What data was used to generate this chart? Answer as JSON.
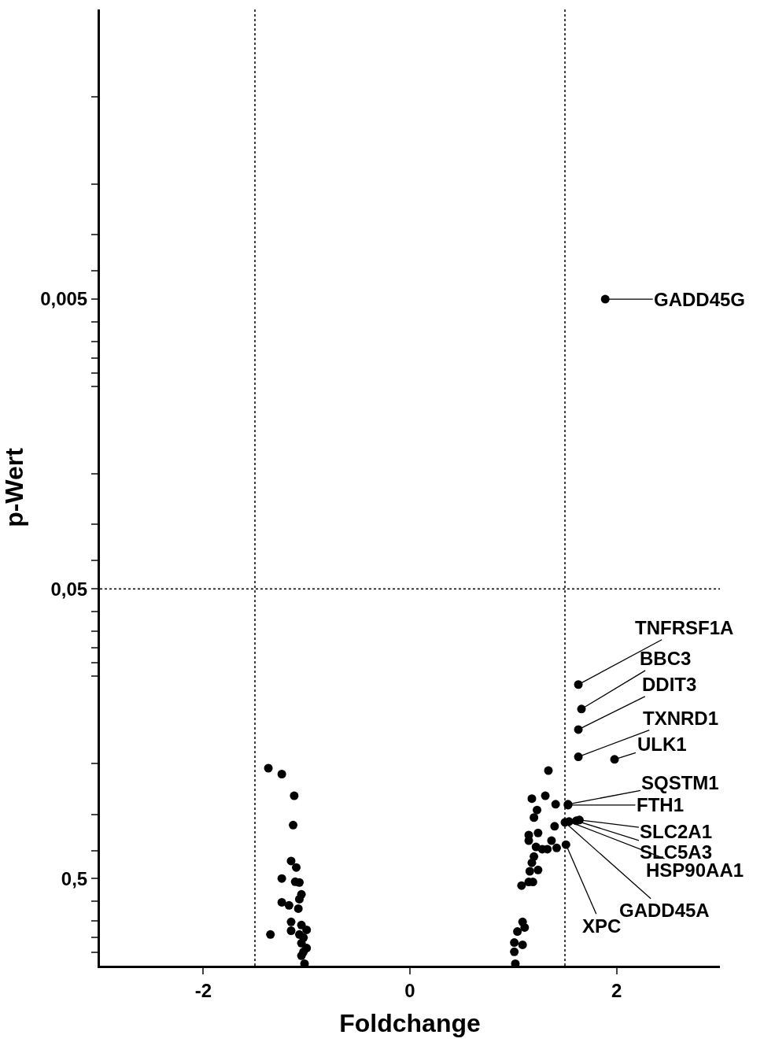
{
  "chart_data": {
    "type": "scatter",
    "xlabel": "Foldchange",
    "ylabel": "p-Wert",
    "x": [
      -1.37,
      -1.24,
      -1.12,
      -1.13,
      -1.15,
      -1.1,
      -1.24,
      -1.11,
      -1.07,
      -1.05,
      -1.07,
      -1.24,
      -1.17,
      -1.08,
      -1.15,
      -1.05,
      -1.15,
      -1.0,
      -1.35,
      -1.07,
      -1.03,
      -1.05,
      -1.0,
      -1.03,
      -1.05,
      -1.02,
      1.89,
      1.63,
      1.66,
      1.63,
      1.63,
      1.98,
      1.34,
      1.18,
      1.31,
      1.41,
      1.53,
      1.53,
      1.23,
      1.2,
      1.4,
      1.5,
      1.54,
      1.64,
      1.61,
      1.51,
      1.15,
      1.15,
      1.24,
      1.22,
      1.28,
      1.33,
      1.37,
      1.42,
      1.2,
      1.18,
      1.24,
      1.16,
      1.19,
      1.08,
      1.15,
      1.09,
      1.11,
      1.04,
      1.01,
      1.09,
      1.01,
      1.02
    ],
    "values": [
      0.208,
      0.218,
      0.259,
      0.327,
      0.435,
      0.458,
      0.5,
      0.513,
      0.516,
      0.567,
      0.589,
      0.604,
      0.619,
      0.635,
      0.706,
      0.724,
      0.757,
      0.752,
      0.78,
      0.78,
      0.8,
      0.836,
      0.869,
      0.895,
      0.924,
      0.984,
      0.005,
      0.107,
      0.13,
      0.153,
      0.19,
      0.194,
      0.212,
      0.265,
      0.259,
      0.277,
      0.277,
      0.279,
      0.29,
      0.308,
      0.33,
      0.32,
      0.318,
      0.314,
      0.316,
      0.382,
      0.354,
      0.37,
      0.348,
      0.389,
      0.396,
      0.396,
      0.37,
      0.392,
      0.42,
      0.441,
      0.467,
      0.472,
      0.514,
      0.529,
      0.514,
      0.706,
      0.738,
      0.762,
      0.832,
      0.847,
      0.895,
      0.984
    ],
    "color": "#000000",
    "marker": "circle",
    "xlim": [
      -3,
      3
    ],
    "xticks": [
      -2,
      0,
      2
    ],
    "ylim": [
      1,
      0.0005
    ],
    "log": "y",
    "yticks": [
      {
        "value": 0.001,
        "label": null
      },
      {
        "value": 0.002,
        "label": null
      },
      {
        "value": 0.003,
        "label": null
      },
      {
        "value": 0.004,
        "label": null
      },
      {
        "value": 0.005,
        "label": "0,005"
      },
      {
        "value": 0.006,
        "label": null
      },
      {
        "value": 0.007,
        "label": null
      },
      {
        "value": 0.008,
        "label": null
      },
      {
        "value": 0.009,
        "label": null
      },
      {
        "value": 0.01,
        "label": null
      },
      {
        "value": 0.02,
        "label": null
      },
      {
        "value": 0.03,
        "label": null
      },
      {
        "value": 0.04,
        "label": null
      },
      {
        "value": 0.05,
        "label": "0,05"
      },
      {
        "value": 0.06,
        "label": null
      },
      {
        "value": 0.07,
        "label": null
      },
      {
        "value": 0.08,
        "label": null
      },
      {
        "value": 0.09,
        "label": null
      },
      {
        "value": 0.1,
        "label": null
      },
      {
        "value": 0.2,
        "label": null
      },
      {
        "value": 0.3,
        "label": null
      },
      {
        "value": 0.4,
        "label": null
      },
      {
        "value": 0.5,
        "label": "0,5"
      },
      {
        "value": 0.6,
        "label": null
      },
      {
        "value": 0.7,
        "label": null
      },
      {
        "value": 0.8,
        "label": null
      },
      {
        "value": 0.9,
        "label": null
      }
    ],
    "ref_lines": [
      {
        "axis": "x",
        "value": -1.5,
        "color": "#000000",
        "line_style": "dotted"
      },
      {
        "axis": "x",
        "value": 1.5,
        "color": "#000000",
        "line_style": "dotted"
      },
      {
        "axis": "y",
        "value": 0.05,
        "color": "#000000",
        "line_style": "dotted"
      }
    ],
    "annotations": [
      {
        "text": "GADD45G",
        "x": 1.89,
        "y": 0.005
      },
      {
        "text": "TNFRSF1A",
        "x": 1.63,
        "y": 0.107
      },
      {
        "text": "BBC3",
        "x": 1.66,
        "y": 0.13
      },
      {
        "text": "DDIT3",
        "x": 1.63,
        "y": 0.153
      },
      {
        "text": "TXNRD1",
        "x": 1.63,
        "y": 0.19
      },
      {
        "text": "ULK1",
        "x": 1.98,
        "y": 0.194
      },
      {
        "text": "SQSTM1",
        "x": 1.53,
        "y": 0.277
      },
      {
        "text": "FTH1",
        "x": 1.53,
        "y": 0.279
      },
      {
        "text": "SLC2A1",
        "x": 1.64,
        "y": 0.314
      },
      {
        "text": "SLC5A3",
        "x": 1.61,
        "y": 0.316
      },
      {
        "text": "HSP90AA1",
        "x": 1.54,
        "y": 0.318
      },
      {
        "text": "GADD45A",
        "x": 1.5,
        "y": 0.32
      },
      {
        "text": "XPC",
        "x": 1.51,
        "y": 0.382
      }
    ]
  }
}
